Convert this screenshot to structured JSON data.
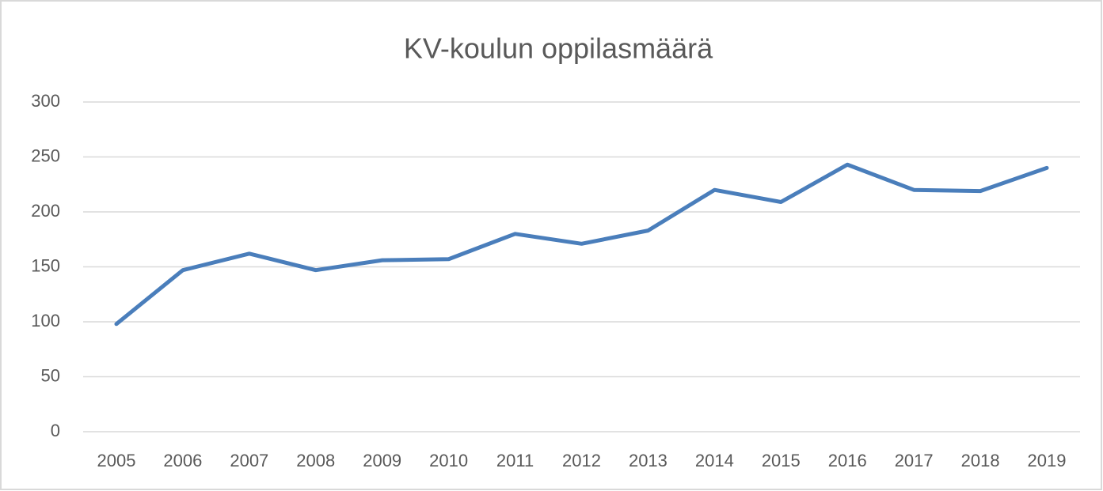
{
  "chart_data": {
    "type": "line",
    "title": "KV-koulun oppilasmäärä",
    "categories": [
      "2005",
      "2006",
      "2007",
      "2008",
      "2009",
      "2010",
      "2011",
      "2012",
      "2013",
      "2014",
      "2015",
      "2016",
      "2017",
      "2018",
      "2019"
    ],
    "series": [
      {
        "name": "Oppilasmäärä",
        "color": "#4a7ebb",
        "values": [
          98,
          147,
          162,
          147,
          156,
          157,
          180,
          171,
          183,
          220,
          209,
          243,
          220,
          219,
          240
        ]
      }
    ],
    "ylim": [
      0,
      300
    ],
    "yticks": [
      0,
      50,
      100,
      150,
      200,
      250,
      300
    ],
    "grid": true,
    "legend": false
  }
}
